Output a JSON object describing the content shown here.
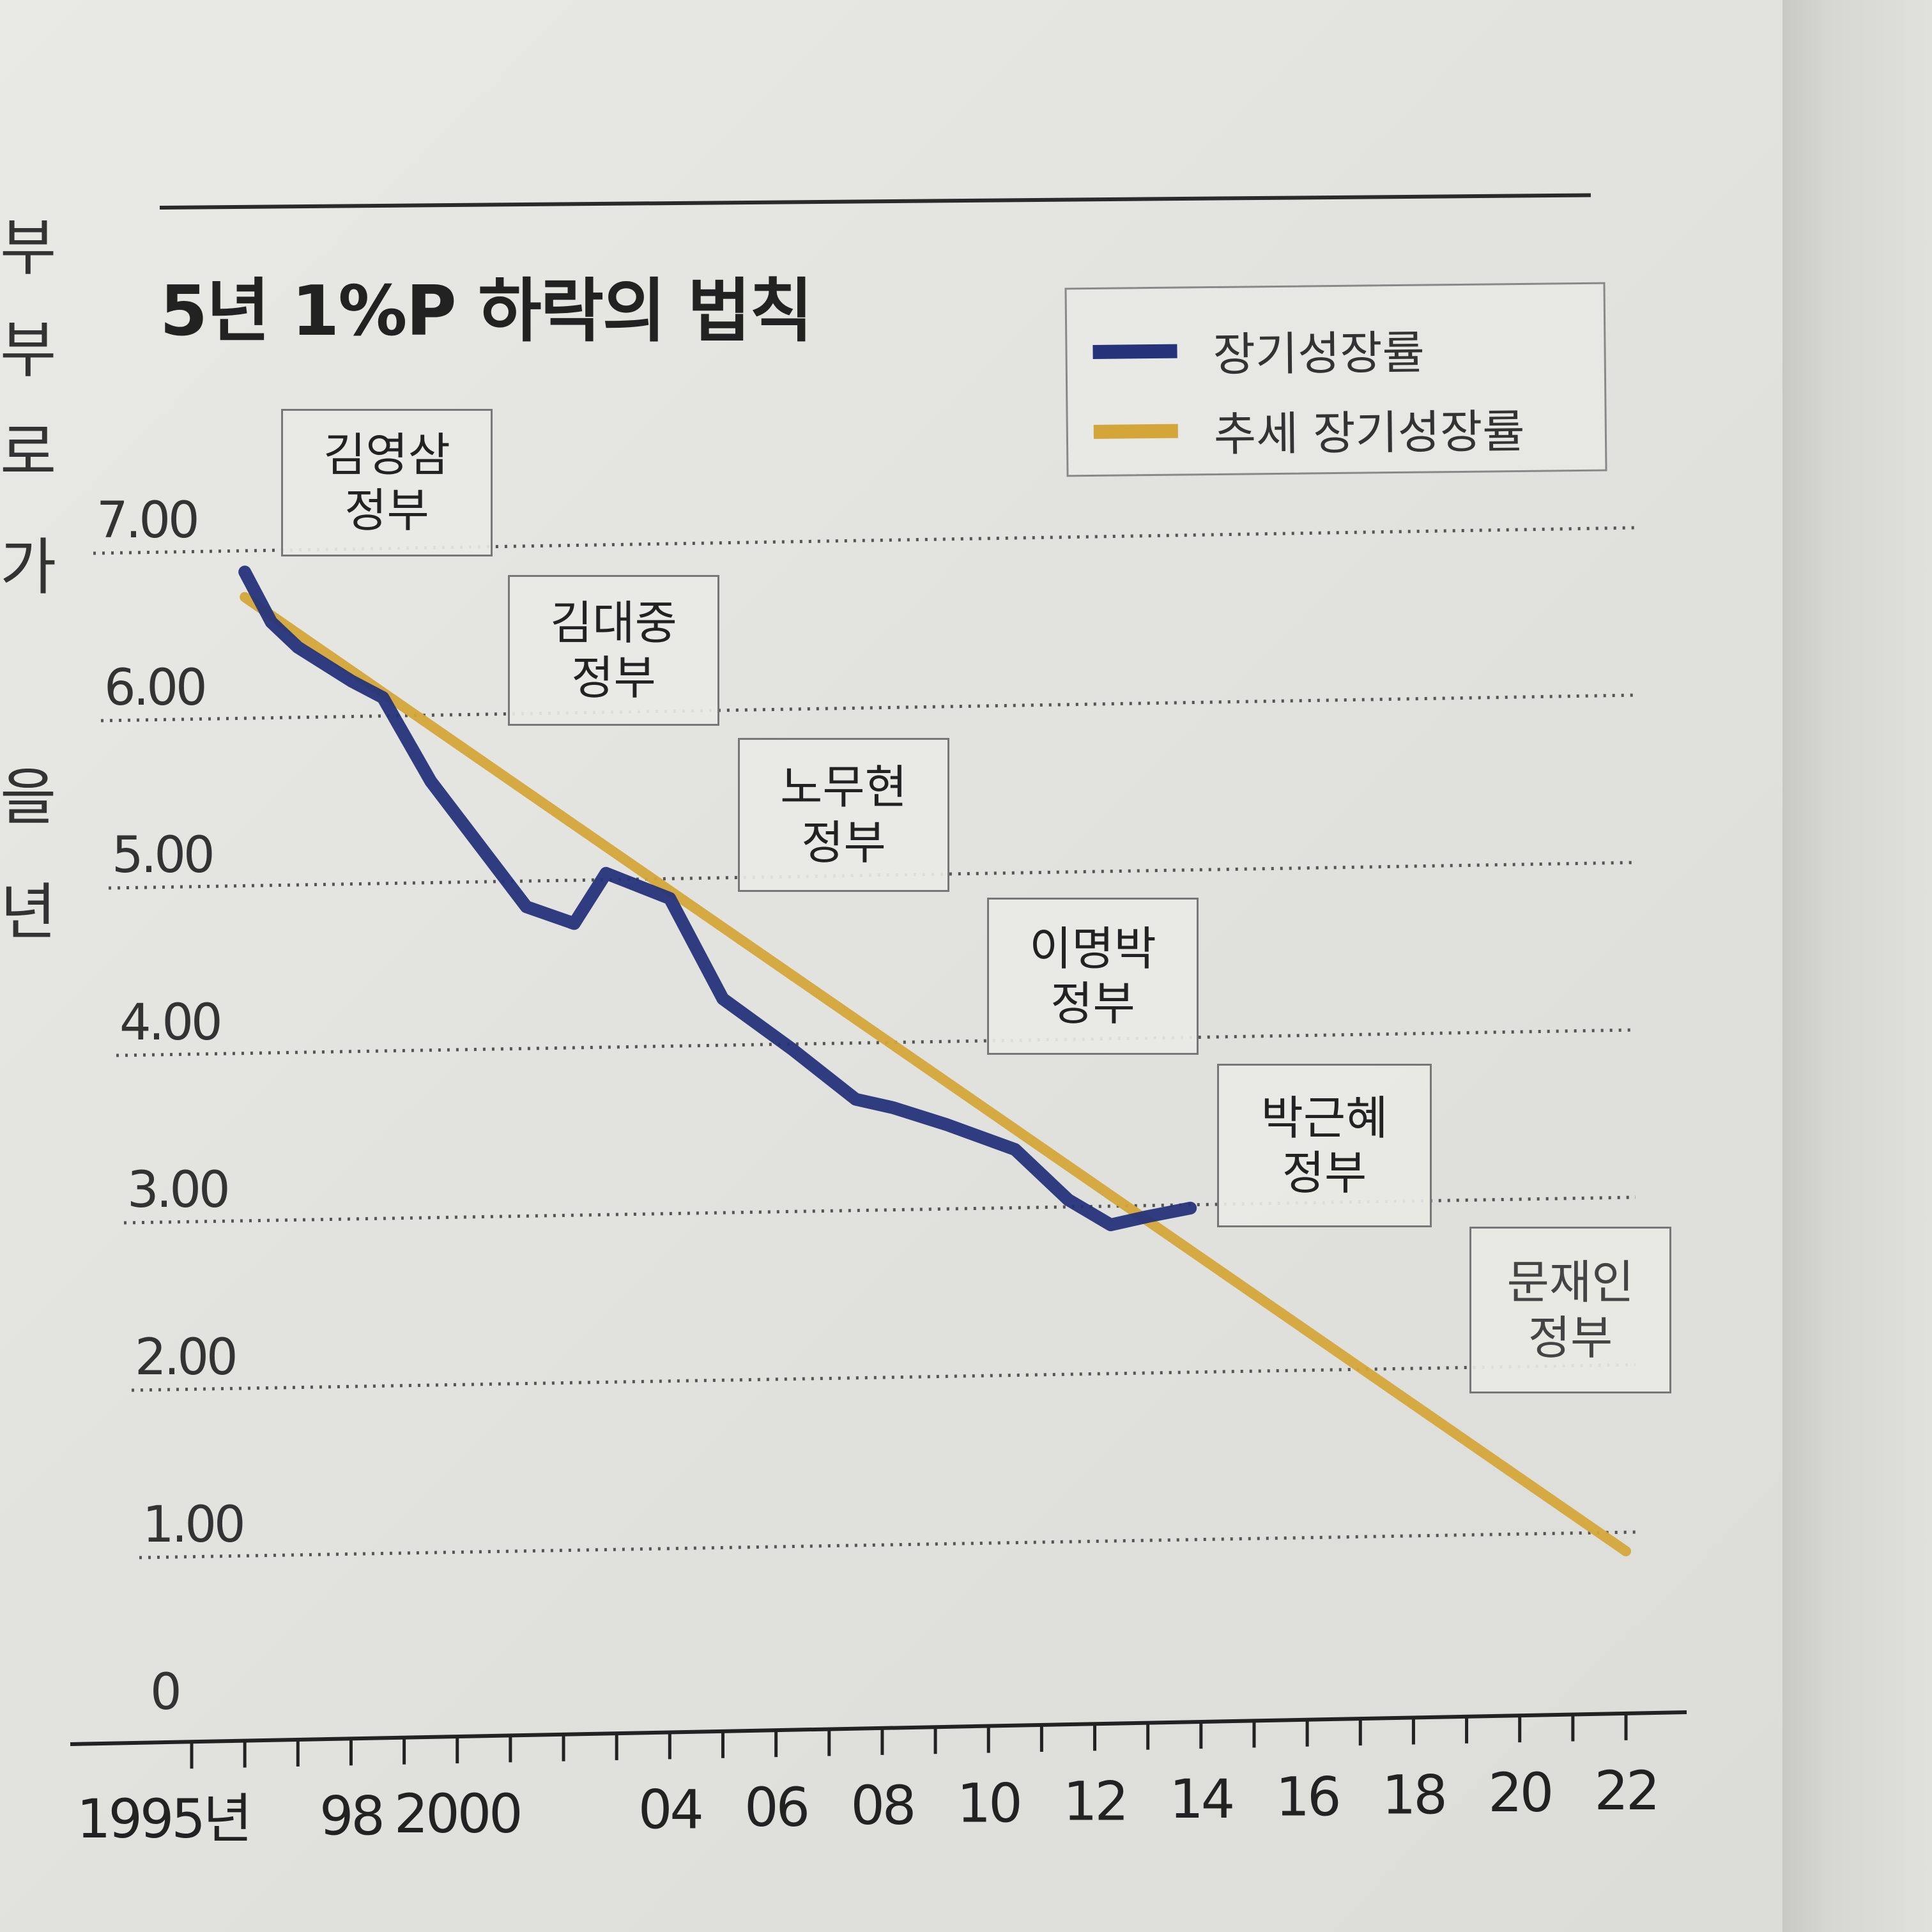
{
  "side_text": [
    "부",
    "부",
    "로",
    "가",
    "을",
    "년"
  ],
  "chart_data": {
    "type": "line",
    "title": "5년 1%P 하락의 법칙",
    "xlabel": "",
    "ylabel": "",
    "ylim": [
      0,
      7
    ],
    "xlim": [
      1995,
      2022
    ],
    "y_ticks": [
      0,
      1,
      2,
      3,
      4,
      5,
      6,
      7
    ],
    "y_tick_labels": [
      "0",
      "1.00",
      "2.00",
      "3.00",
      "4.00",
      "5.00",
      "6.00",
      "7.00"
    ],
    "x_tick_labels": [
      {
        "x": 1995,
        "label": "1995년"
      },
      {
        "x": 1998,
        "label": "98"
      },
      {
        "x": 2000,
        "label": "2000"
      },
      {
        "x": 2004,
        "label": "04"
      },
      {
        "x": 2006,
        "label": "06"
      },
      {
        "x": 2008,
        "label": "08"
      },
      {
        "x": 2010,
        "label": "10"
      },
      {
        "x": 2012,
        "label": "12"
      },
      {
        "x": 2014,
        "label": "14"
      },
      {
        "x": 2016,
        "label": "16"
      },
      {
        "x": 2018,
        "label": "18"
      },
      {
        "x": 2020,
        "label": "20"
      },
      {
        "x": 2022,
        "label": "22"
      }
    ],
    "grid": "dotted horizontal",
    "legend_position": "top-right",
    "series": [
      {
        "name": "장기성장률",
        "color": "#25337a",
        "x": [
          1996,
          1996.5,
          1997,
          1998,
          1998.6,
          1999.5,
          2001.3,
          2002.2,
          2002.8,
          2003.2,
          2004,
          2005,
          2006.3,
          2007.5,
          2008.2,
          2009.2,
          2010.5,
          2011.5,
          2012.3,
          2013,
          2013.8
        ],
        "values": [
          6.85,
          6.55,
          6.4,
          6.2,
          6.1,
          5.6,
          4.85,
          4.75,
          5.05,
          5.0,
          4.9,
          4.3,
          4.0,
          3.7,
          3.65,
          3.55,
          3.4,
          3.1,
          2.95,
          3.0,
          3.05
        ]
      },
      {
        "name": "추세 장기성장률",
        "color": "#d4a63a",
        "x": [
          1996,
          2022
        ],
        "values": [
          6.7,
          1.0
        ]
      }
    ],
    "annotations": [
      {
        "text": [
          "김영삼",
          "정부"
        ],
        "x": 1997
      },
      {
        "text": [
          "김대중",
          "정부"
        ],
        "x": 2001
      },
      {
        "text": [
          "노무현",
          "정부"
        ],
        "x": 2005.5
      },
      {
        "text": [
          "이명박",
          "정부"
        ],
        "x": 2010
      },
      {
        "text": [
          "박근혜",
          "정부"
        ],
        "x": 2014.5
      },
      {
        "text": [
          "문재인",
          "정부"
        ],
        "x": 2019
      }
    ]
  }
}
